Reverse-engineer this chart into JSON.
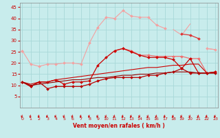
{
  "x": [
    0,
    1,
    2,
    3,
    4,
    5,
    6,
    7,
    8,
    9,
    10,
    11,
    12,
    13,
    14,
    15,
    16,
    17,
    18,
    19,
    20,
    21,
    22,
    23
  ],
  "series": [
    {
      "color": "#f4a0a0",
      "marker": "D",
      "markersize": 2.0,
      "linewidth": 0.8,
      "y": [
        25.5,
        19.5,
        18.5,
        19.5,
        19.5,
        20.0,
        20.0,
        19.5,
        29.0,
        36.0,
        40.5,
        40.0,
        43.5,
        41.0,
        40.5,
        40.5,
        37.0,
        35.5,
        null,
        null,
        null,
        null,
        null,
        null
      ]
    },
    {
      "color": "#f4a0a0",
      "marker": "D",
      "markersize": 2.0,
      "linewidth": 0.8,
      "y": [
        25.5,
        null,
        null,
        null,
        null,
        null,
        null,
        null,
        null,
        null,
        null,
        null,
        null,
        null,
        null,
        null,
        null,
        null,
        null,
        null,
        null,
        null,
        26.5,
        26.0
      ]
    },
    {
      "color": "#f4a0a0",
      "marker": null,
      "markersize": 0,
      "linewidth": 0.8,
      "y": [
        25.5,
        null,
        null,
        null,
        null,
        null,
        null,
        null,
        null,
        null,
        null,
        null,
        null,
        null,
        null,
        null,
        null,
        null,
        35.0,
        32.5,
        37.5,
        null,
        26.5,
        26.0
      ]
    },
    {
      "color": "#ee7070",
      "marker": "D",
      "markersize": 2.0,
      "linewidth": 0.9,
      "y": [
        null,
        null,
        null,
        null,
        null,
        null,
        null,
        null,
        null,
        null,
        null,
        25.5,
        26.5,
        25.5,
        23.5,
        23.5,
        23.0,
        23.0,
        23.0,
        23.0,
        22.0,
        22.0,
        15.5,
        16.0
      ]
    },
    {
      "color": "#dd3333",
      "marker": "D",
      "markersize": 2.0,
      "linewidth": 0.9,
      "y": [
        null,
        null,
        null,
        null,
        null,
        null,
        null,
        null,
        null,
        null,
        null,
        null,
        null,
        null,
        null,
        null,
        null,
        null,
        null,
        33.0,
        32.5,
        31.0,
        null,
        null
      ]
    },
    {
      "color": "#cc0000",
      "marker": "D",
      "markersize": 2.0,
      "linewidth": 0.9,
      "y": [
        11.5,
        9.5,
        11.5,
        11.5,
        12.5,
        10.5,
        11.5,
        11.5,
        12.0,
        19.0,
        22.5,
        25.5,
        26.5,
        25.0,
        23.5,
        22.5,
        22.5,
        22.5,
        21.5,
        17.5,
        22.0,
        15.5,
        15.5,
        16.0
      ]
    },
    {
      "color": "#bb0000",
      "marker": "D",
      "markersize": 2.0,
      "linewidth": 0.9,
      "y": [
        11.5,
        9.5,
        11.5,
        8.5,
        9.5,
        9.5,
        9.5,
        9.5,
        10.5,
        12.0,
        13.0,
        13.5,
        13.5,
        13.5,
        13.5,
        14.5,
        14.5,
        15.5,
        16.0,
        17.5,
        15.5,
        15.5,
        15.5,
        15.5
      ]
    },
    {
      "color": "#cc0000",
      "marker": null,
      "markersize": 0,
      "linewidth": 0.8,
      "y": [
        11.5,
        10.5,
        11.5,
        11.5,
        12.5,
        13.0,
        13.5,
        14.0,
        14.5,
        15.0,
        15.5,
        16.0,
        16.5,
        17.0,
        17.5,
        18.0,
        18.0,
        18.5,
        19.0,
        19.0,
        19.5,
        19.5,
        15.5,
        16.0
      ]
    },
    {
      "color": "#990000",
      "marker": null,
      "markersize": 0,
      "linewidth": 0.8,
      "y": [
        11.5,
        10.0,
        10.5,
        11.0,
        11.5,
        12.0,
        12.5,
        12.5,
        13.0,
        13.5,
        13.5,
        14.0,
        14.5,
        14.5,
        15.0,
        15.0,
        15.5,
        15.5,
        16.0,
        16.0,
        16.0,
        15.5,
        15.5,
        15.5
      ]
    }
  ],
  "xlabel": "Vent moyen/en rafales ( km/h )",
  "xlim": [
    -0.3,
    23.3
  ],
  "ylim": [
    0,
    47
  ],
  "yticks": [
    5,
    10,
    15,
    20,
    25,
    30,
    35,
    40,
    45
  ],
  "xticks": [
    0,
    1,
    2,
    3,
    4,
    5,
    6,
    7,
    8,
    9,
    10,
    11,
    12,
    13,
    14,
    15,
    16,
    17,
    18,
    19,
    20,
    21,
    22,
    23
  ],
  "background_color": "#c8ecec",
  "grid_color": "#a8d8d8",
  "tick_color": "#cc0000",
  "label_color": "#cc0000",
  "arrow_color": "#cc0000",
  "spine_color": "#888888"
}
